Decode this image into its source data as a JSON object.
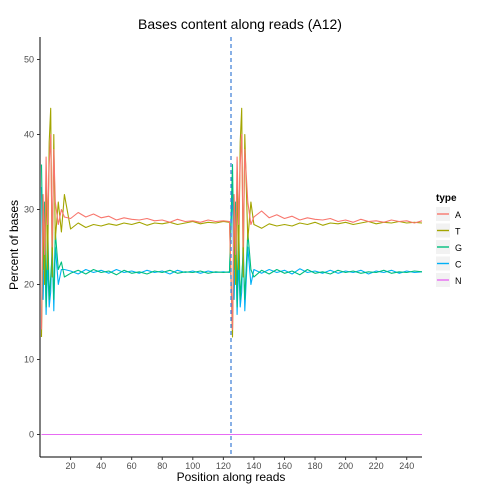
{
  "chart_data": {
    "type": "line",
    "title": "Bases content along reads (A12)",
    "xlabel": "Position along reads",
    "ylabel": "Percent of bases",
    "xlim": [
      0,
      250
    ],
    "ylim": [
      -3,
      53
    ],
    "x_ticks": [
      20,
      40,
      60,
      80,
      100,
      120,
      140,
      160,
      180,
      200,
      220,
      240
    ],
    "y_ticks": [
      0,
      10,
      20,
      30,
      40,
      50
    ],
    "grid": false,
    "legend": {
      "title": "type",
      "position": "right"
    },
    "vline": {
      "x": 125,
      "style": "dashed",
      "color": "#3a7bd5"
    },
    "series": [
      {
        "name": "A",
        "color": "#f8766d",
        "x": [
          1,
          2,
          3,
          4,
          5,
          6,
          7,
          8,
          9,
          10,
          12,
          14,
          16,
          20,
          25,
          30,
          35,
          40,
          45,
          50,
          55,
          60,
          65,
          70,
          75,
          80,
          85,
          90,
          95,
          100,
          105,
          110,
          115,
          120,
          124,
          126,
          127,
          128,
          129,
          130,
          131,
          132,
          133,
          134,
          136,
          138,
          140,
          145,
          150,
          155,
          160,
          165,
          170,
          175,
          180,
          185,
          190,
          195,
          200,
          205,
          210,
          215,
          220,
          225,
          230,
          235,
          240,
          245,
          250
        ],
        "y": [
          14,
          32,
          24,
          37,
          28,
          36,
          40,
          25,
          38,
          31,
          28,
          30,
          29,
          28.8,
          29.6,
          29.0,
          29.4,
          28.9,
          29.1,
          28.6,
          28.9,
          28.7,
          28.6,
          28.8,
          28.5,
          28.6,
          28.3,
          28.7,
          28.4,
          28.5,
          28.3,
          28.6,
          28.4,
          28.5,
          28.4,
          14,
          32,
          24,
          37,
          28,
          36,
          40,
          25,
          38,
          31,
          28,
          29,
          29.8,
          28.9,
          29.3,
          28.8,
          29.1,
          28.6,
          28.9,
          28.7,
          28.6,
          28.8,
          28.4,
          28.6,
          28.3,
          28.7,
          28.4,
          28.5,
          28.3,
          28.6,
          28.4,
          28.5,
          28.2,
          28.5
        ]
      },
      {
        "name": "T",
        "color": "#a3a500",
        "x": [
          1,
          2,
          3,
          4,
          5,
          6,
          7,
          8,
          9,
          10,
          12,
          14,
          16,
          20,
          25,
          30,
          35,
          40,
          45,
          50,
          55,
          60,
          65,
          70,
          75,
          80,
          85,
          90,
          95,
          100,
          105,
          110,
          115,
          120,
          124,
          126,
          127,
          128,
          129,
          130,
          131,
          132,
          133,
          134,
          136,
          138,
          140,
          145,
          150,
          155,
          160,
          165,
          170,
          175,
          180,
          185,
          190,
          195,
          200,
          205,
          210,
          215,
          220,
          225,
          230,
          235,
          240,
          245,
          250
        ],
        "y": [
          13,
          30,
          20,
          34,
          22,
          39,
          43.5,
          21,
          40,
          26,
          31,
          27,
          32,
          27.4,
          28.2,
          27.6,
          28.0,
          27.8,
          28.1,
          27.9,
          28.2,
          28.0,
          28.3,
          27.9,
          28.2,
          28.1,
          28.3,
          28.0,
          28.2,
          28.4,
          28.1,
          28.3,
          28.2,
          28.4,
          28.3,
          13,
          30,
          20,
          34,
          22,
          39,
          43.5,
          21,
          40,
          26,
          31,
          28,
          27.5,
          28.1,
          27.8,
          28.0,
          27.8,
          28.2,
          28.0,
          28.3,
          27.9,
          28.2,
          28.1,
          28.3,
          28.0,
          28.2,
          28.4,
          28.1,
          28.3,
          28.2,
          28.4,
          28.2,
          28.3,
          28.2
        ]
      },
      {
        "name": "G",
        "color": "#00bf7d",
        "x": [
          1,
          2,
          3,
          4,
          5,
          6,
          7,
          8,
          9,
          10,
          12,
          14,
          16,
          20,
          25,
          30,
          35,
          40,
          45,
          50,
          55,
          60,
          65,
          70,
          75,
          80,
          85,
          90,
          95,
          100,
          105,
          110,
          115,
          120,
          124,
          126,
          127,
          128,
          129,
          130,
          131,
          132,
          133,
          134,
          136,
          138,
          140,
          145,
          150,
          155,
          160,
          165,
          170,
          175,
          180,
          185,
          190,
          195,
          200,
          205,
          210,
          215,
          220,
          225,
          230,
          235,
          240,
          245,
          250
        ],
        "y": [
          36,
          22,
          31,
          17,
          29,
          18,
          21,
          24,
          18,
          27,
          22,
          23,
          21,
          21.5,
          21.9,
          21.4,
          22.0,
          21.6,
          21.8,
          21.3,
          21.9,
          21.5,
          21.7,
          21.4,
          21.8,
          21.6,
          21.9,
          21.5,
          21.7,
          21.6,
          21.8,
          21.5,
          21.7,
          21.6,
          21.7,
          36,
          22,
          31,
          17,
          29,
          18,
          21,
          24,
          18,
          27,
          22,
          21,
          21.9,
          21.4,
          22.0,
          21.5,
          21.8,
          21.3,
          22.0,
          21.5,
          21.7,
          21.4,
          21.9,
          21.6,
          21.8,
          21.5,
          21.7,
          21.6,
          21.9,
          21.5,
          21.7,
          21.6,
          21.8,
          21.7
        ]
      },
      {
        "name": "C",
        "color": "#00b0f6",
        "x": [
          1,
          2,
          3,
          4,
          5,
          6,
          7,
          8,
          9,
          10,
          12,
          14,
          16,
          20,
          25,
          30,
          35,
          40,
          45,
          50,
          55,
          60,
          65,
          70,
          75,
          80,
          85,
          90,
          95,
          100,
          105,
          110,
          115,
          120,
          124,
          126,
          127,
          128,
          129,
          130,
          131,
          132,
          133,
          134,
          136,
          138,
          140,
          145,
          150,
          155,
          160,
          165,
          170,
          175,
          180,
          185,
          190,
          195,
          200,
          205,
          210,
          215,
          220,
          225,
          230,
          235,
          240,
          245,
          250
        ],
        "y": [
          33,
          18,
          26,
          16,
          23,
          17,
          19,
          26,
          16.5,
          25,
          20,
          22,
          22,
          21.8,
          21.4,
          22.0,
          21.6,
          21.9,
          21.5,
          22.0,
          21.6,
          21.8,
          21.5,
          21.9,
          21.6,
          21.8,
          21.4,
          21.9,
          21.6,
          21.8,
          21.5,
          21.8,
          21.6,
          21.7,
          21.6,
          33,
          18,
          26,
          16,
          23,
          17,
          19,
          26,
          16.5,
          25,
          20,
          22,
          21.5,
          22.0,
          21.6,
          21.9,
          21.4,
          22.1,
          21.6,
          21.8,
          21.5,
          21.9,
          21.5,
          21.8,
          21.6,
          21.9,
          21.4,
          21.8,
          21.6,
          21.9,
          21.5,
          21.8,
          21.6,
          21.7
        ]
      },
      {
        "name": "N",
        "color": "#e76bf3",
        "x": [
          1,
          250
        ],
        "y": [
          0,
          0
        ]
      }
    ]
  }
}
